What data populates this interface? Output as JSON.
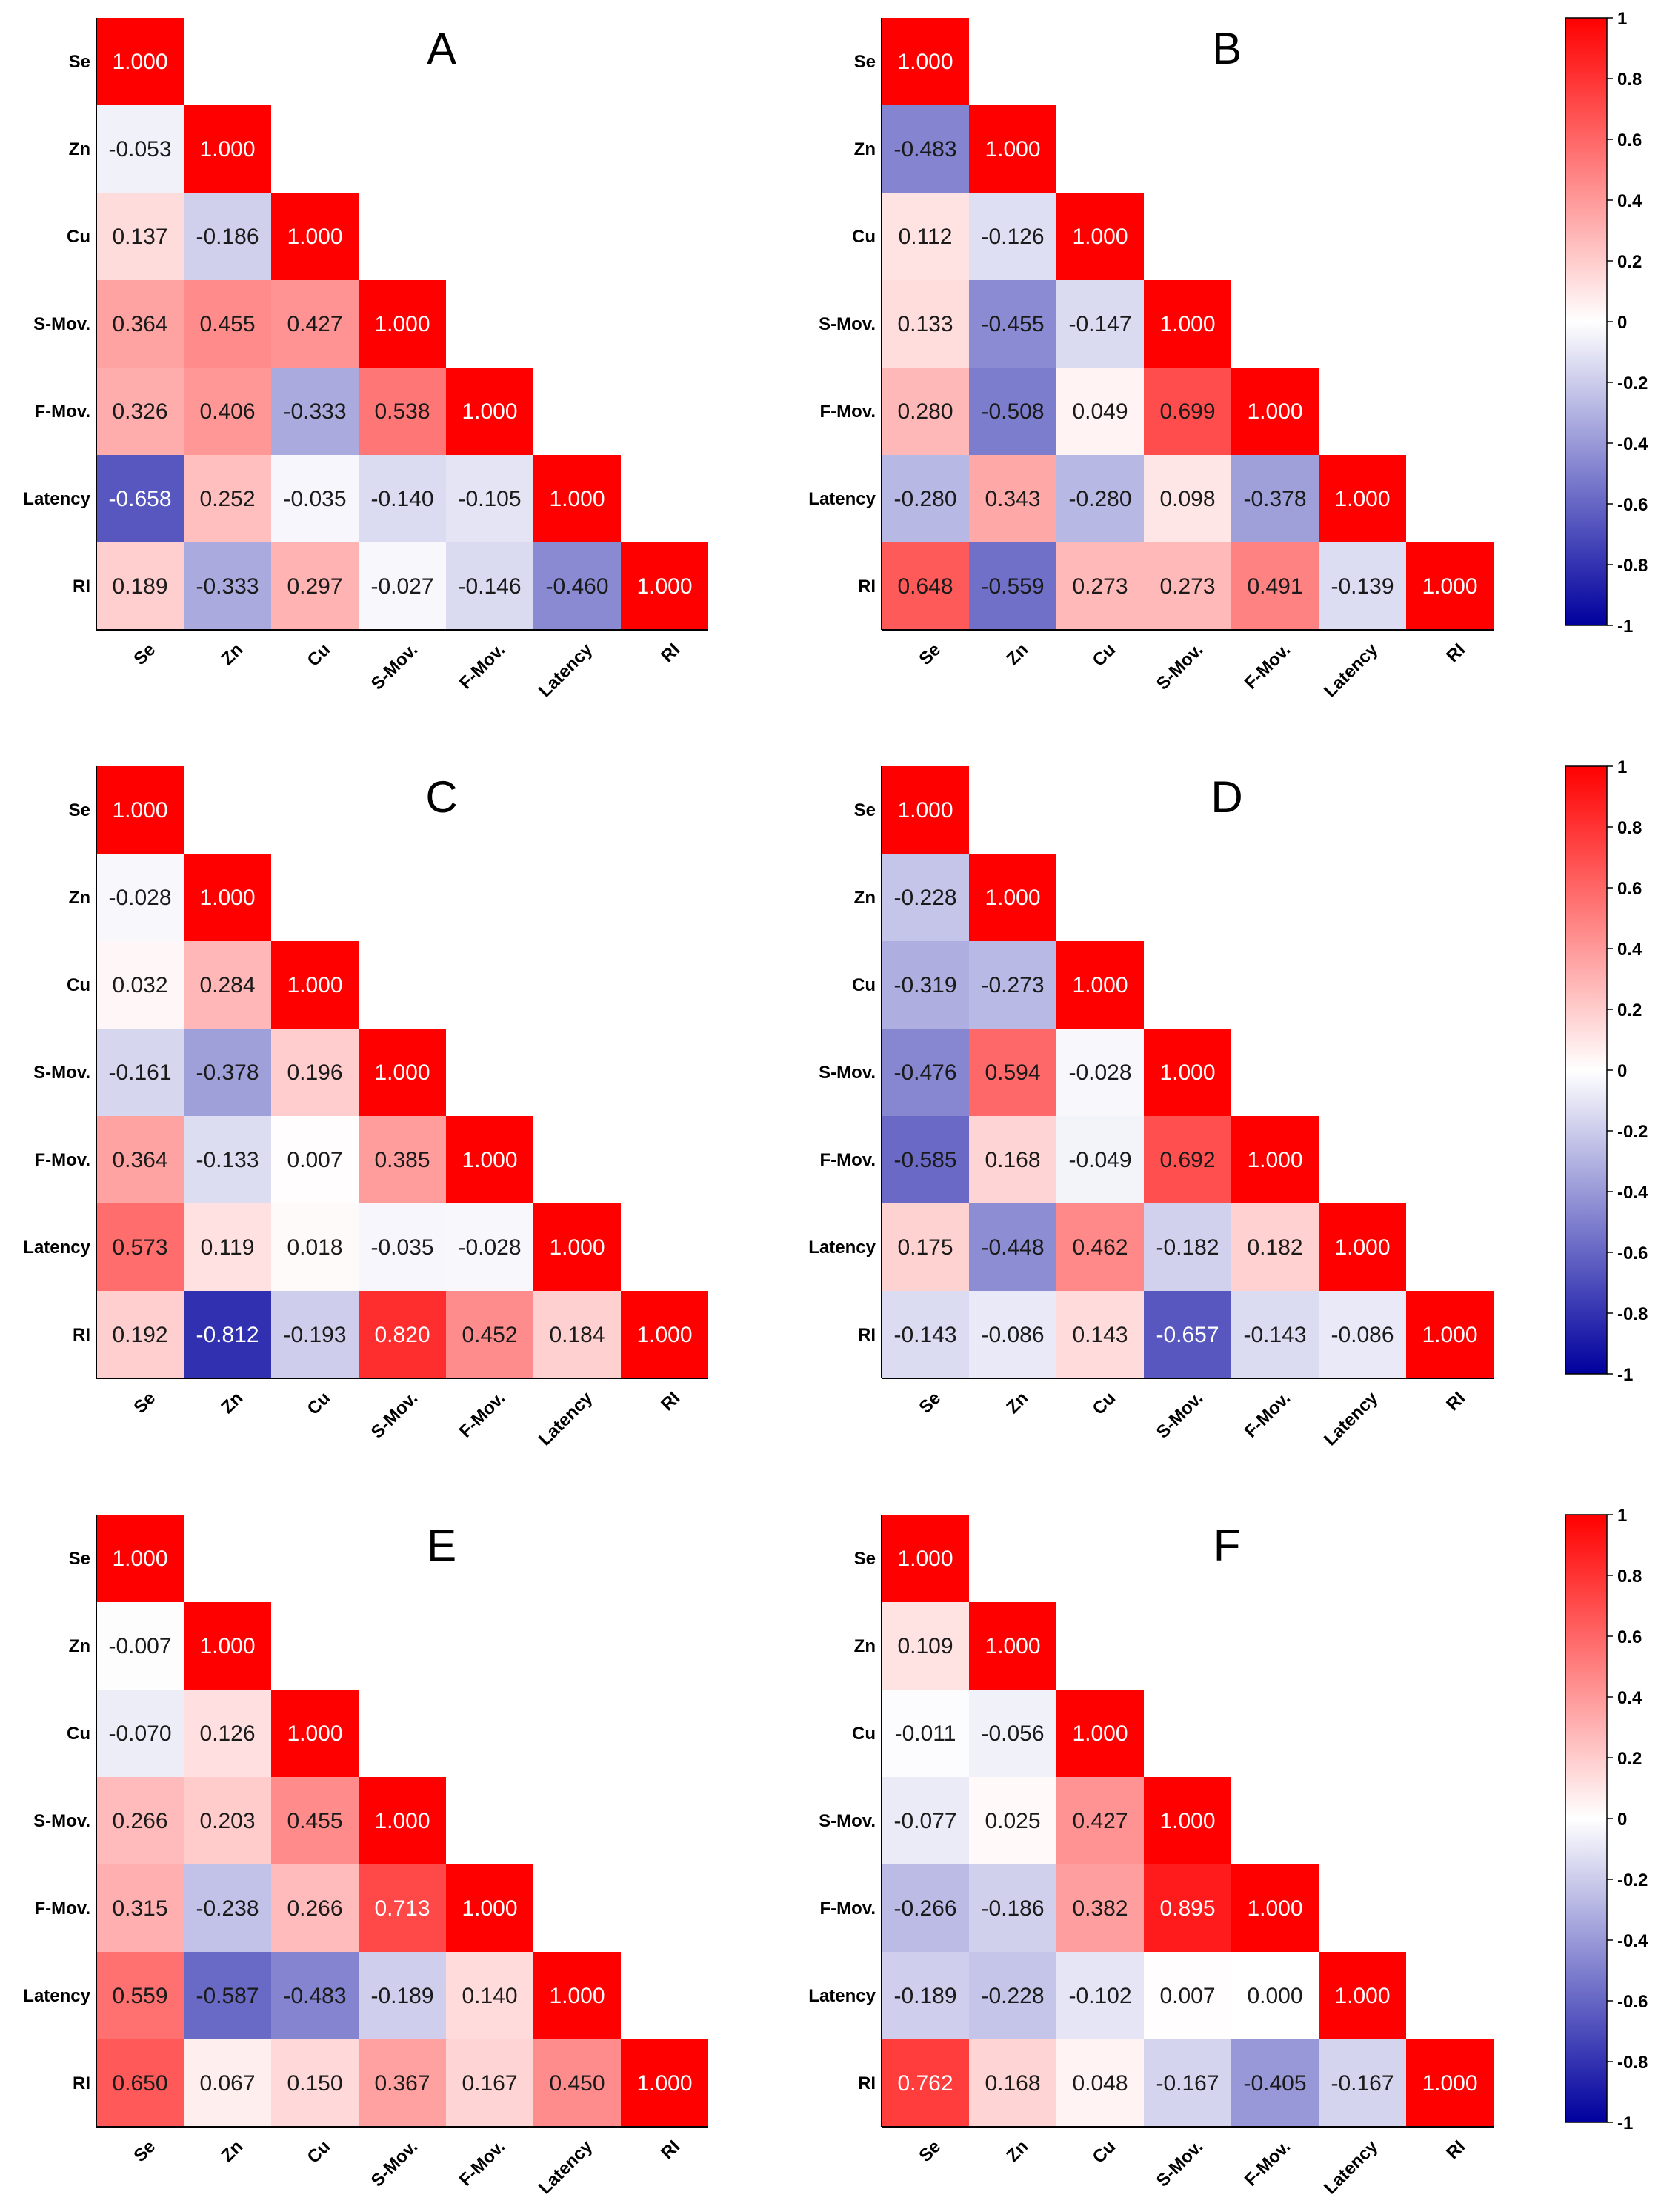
{
  "chart_data": {
    "type": "heatmap",
    "variables": [
      "Se",
      "Zn",
      "Cu",
      "S-Mov.",
      "F-Mov.",
      "Latency",
      "RI"
    ],
    "value_range": [
      -1,
      1
    ],
    "colorbar": {
      "ticks": [
        "1",
        "0.8",
        "0.6",
        "0.4",
        "0.2",
        "0",
        "-0.2",
        "-0.4",
        "-0.6",
        "-0.8",
        "-1"
      ],
      "colors": {
        "low": "#00009e",
        "mid": "#ffffff",
        "high": "#ff0000"
      }
    },
    "panels": [
      {
        "label": "A",
        "rows": [
          [
            "1.000"
          ],
          [
            "-0.053",
            "1.000"
          ],
          [
            "0.137",
            "-0.186",
            "1.000"
          ],
          [
            "0.364",
            "0.455",
            "0.427",
            "1.000"
          ],
          [
            "0.326",
            "0.406",
            "-0.333",
            "0.538",
            "1.000"
          ],
          [
            "-0.658",
            "0.252",
            "-0.035",
            "-0.140",
            "-0.105",
            "1.000"
          ],
          [
            "0.189",
            "-0.333",
            "0.297",
            "-0.027",
            "-0.146",
            "-0.460",
            "1.000"
          ]
        ]
      },
      {
        "label": "B",
        "rows": [
          [
            "1.000"
          ],
          [
            "-0.483",
            "1.000"
          ],
          [
            "0.112",
            "-0.126",
            "1.000"
          ],
          [
            "0.133",
            "-0.455",
            "-0.147",
            "1.000"
          ],
          [
            "0.280",
            "-0.508",
            "0.049",
            "0.699",
            "1.000"
          ],
          [
            "-0.280",
            "0.343",
            "-0.280",
            "0.098",
            "-0.378",
            "1.000"
          ],
          [
            "0.648",
            "-0.559",
            "0.273",
            "0.273",
            "0.491",
            "-0.139",
            "1.000"
          ]
        ]
      },
      {
        "label": "C",
        "rows": [
          [
            "1.000"
          ],
          [
            "-0.028",
            "1.000"
          ],
          [
            "0.032",
            "0.284",
            "1.000"
          ],
          [
            "-0.161",
            "-0.378",
            "0.196",
            "1.000"
          ],
          [
            "0.364",
            "-0.133",
            "0.007",
            "0.385",
            "1.000"
          ],
          [
            "0.573",
            "0.119",
            "0.018",
            "-0.035",
            "-0.028",
            "1.000"
          ],
          [
            "0.192",
            "-0.812",
            "-0.193",
            "0.820",
            "0.452",
            "0.184",
            "1.000"
          ]
        ]
      },
      {
        "label": "D",
        "rows": [
          [
            "1.000"
          ],
          [
            "-0.228",
            "1.000"
          ],
          [
            "-0.319",
            "-0.273",
            "1.000"
          ],
          [
            "-0.476",
            "0.594",
            "-0.028",
            "1.000"
          ],
          [
            "-0.585",
            "0.168",
            "-0.049",
            "0.692",
            "1.000"
          ],
          [
            "0.175",
            "-0.448",
            "0.462",
            "-0.182",
            "0.182",
            "1.000"
          ],
          [
            "-0.143",
            "-0.086",
            "0.143",
            "-0.657",
            "-0.143",
            "-0.086",
            "1.000"
          ]
        ]
      },
      {
        "label": "E",
        "rows": [
          [
            "1.000"
          ],
          [
            "-0.007",
            "1.000"
          ],
          [
            "-0.070",
            "0.126",
            "1.000"
          ],
          [
            "0.266",
            "0.203",
            "0.455",
            "1.000"
          ],
          [
            "0.315",
            "-0.238",
            "0.266",
            "0.713",
            "1.000"
          ],
          [
            "0.559",
            "-0.587",
            "-0.483",
            "-0.189",
            "0.140",
            "1.000"
          ],
          [
            "0.650",
            "0.067",
            "0.150",
            "0.367",
            "0.167",
            "0.450",
            "1.000"
          ]
        ]
      },
      {
        "label": "F",
        "rows": [
          [
            "1.000"
          ],
          [
            "0.109",
            "1.000"
          ],
          [
            "-0.011",
            "-0.056",
            "1.000"
          ],
          [
            "-0.077",
            "0.025",
            "0.427",
            "1.000"
          ],
          [
            "-0.266",
            "-0.186",
            "0.382",
            "0.895",
            "1.000"
          ],
          [
            "-0.189",
            "-0.228",
            "-0.102",
            "0.007",
            "0.000",
            "1.000"
          ],
          [
            "0.762",
            "0.168",
            "0.048",
            "-0.167",
            "-0.405",
            "-0.167",
            "1.000"
          ]
        ]
      }
    ]
  }
}
